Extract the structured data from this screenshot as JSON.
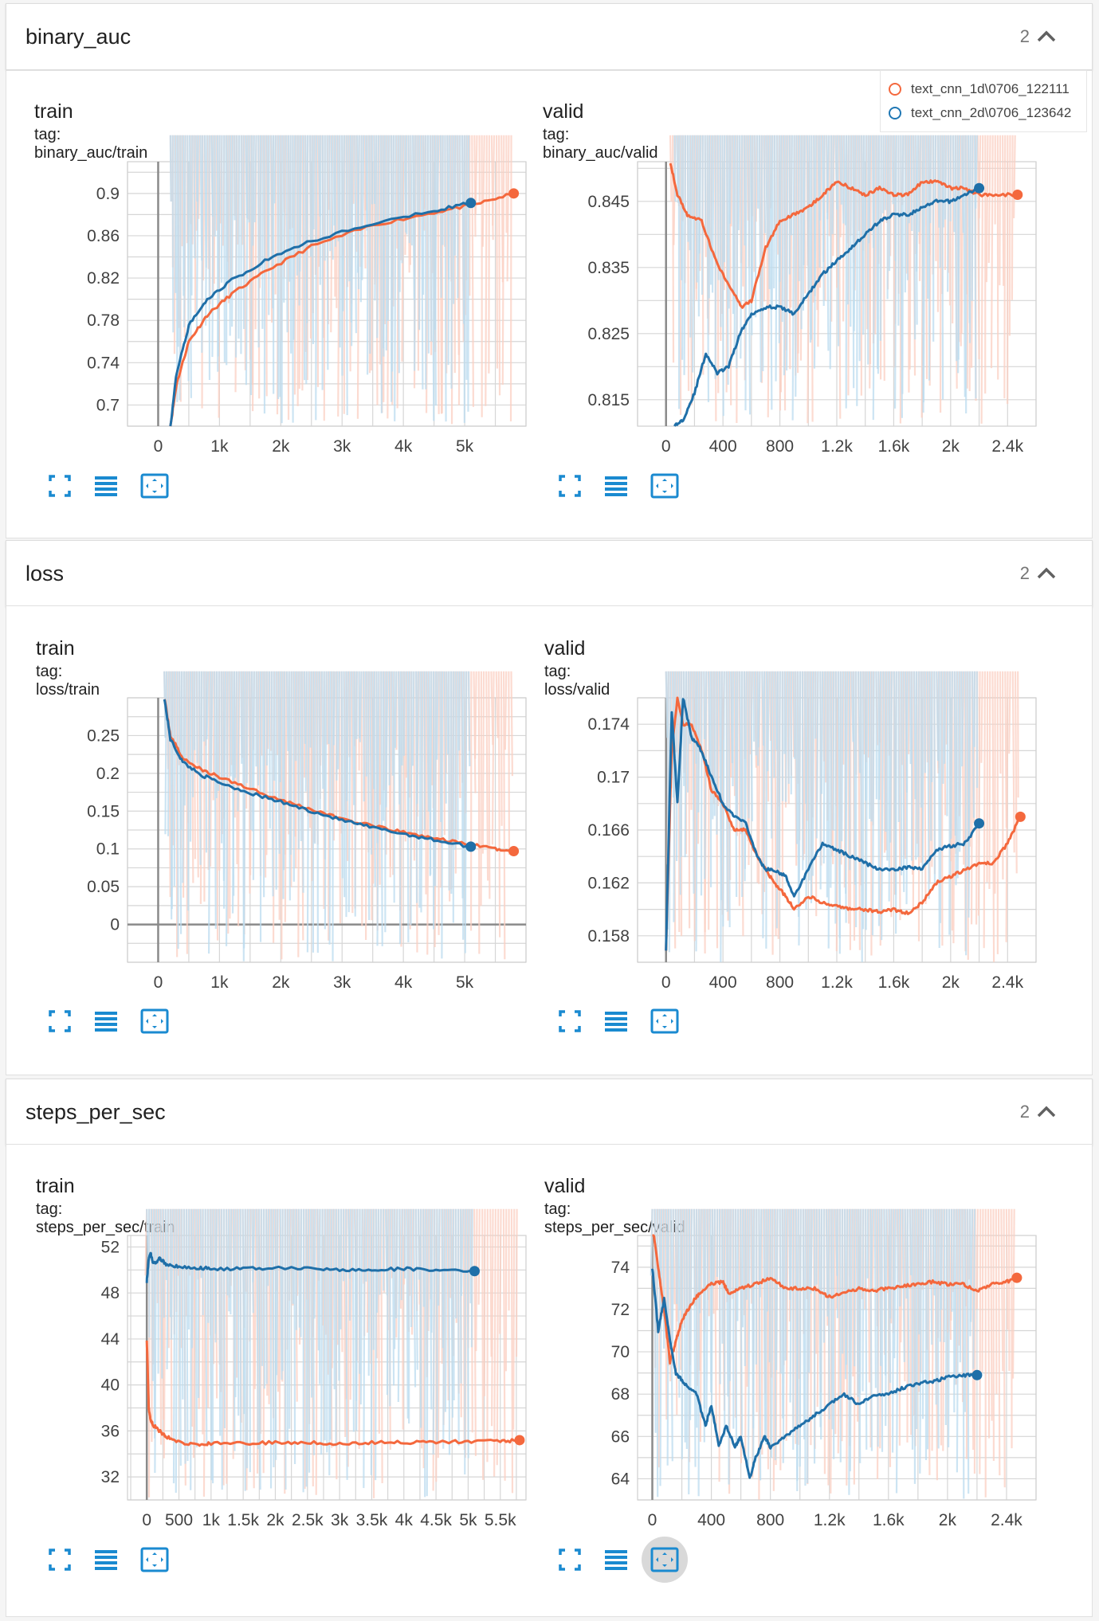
{
  "legend": [
    {
      "name": "text_cnn_1d\\0706_122111",
      "color": "#f4683d"
    },
    {
      "name": "text_cnn_2d\\0706_123642",
      "color": "#1f77b4"
    }
  ],
  "colors": {
    "orange": "#f4683d",
    "blue": "#1f6fa8",
    "orange_light": "#fbd0c2",
    "blue_light": "#bcdcef"
  },
  "sections": [
    {
      "title": "binary_auc",
      "count": "2",
      "cards": [
        {
          "title": "train",
          "tag": "tag: binary_auc/train"
        },
        {
          "title": "valid",
          "tag": "tag: binary_auc/valid"
        }
      ]
    },
    {
      "title": "loss",
      "count": "2",
      "cards": [
        {
          "title": "train",
          "tag": "tag: loss/train"
        },
        {
          "title": "valid",
          "tag": "tag: loss/valid"
        }
      ]
    },
    {
      "title": "steps_per_sec",
      "count": "2",
      "cards": [
        {
          "title": "train",
          "tag": "tag: steps_per_sec/train"
        },
        {
          "title": "valid",
          "tag": "tag: steps_per_sec/valid"
        }
      ]
    }
  ],
  "chart_data": [
    {
      "type": "line",
      "title": "train",
      "id": "auc_train",
      "xlim": [
        -500,
        6000
      ],
      "ylim": [
        0.68,
        0.93
      ],
      "x_ticks": [
        0,
        1000,
        2000,
        3000,
        4000,
        5000
      ],
      "x_tick_labels": [
        "0",
        "1k",
        "2k",
        "3k",
        "4k",
        "5k"
      ],
      "y_ticks": [
        0.7,
        0.74,
        0.78,
        0.82,
        0.86,
        0.9
      ],
      "y_tick_labels": [
        "0.7",
        "0.74",
        "0.78",
        "0.82",
        "0.86",
        "0.9"
      ],
      "series": [
        {
          "name": "text_cnn_1d\\0706_122111",
          "color": "orange",
          "x": [
            200,
            300,
            500,
            800,
            1200,
            1800,
            2500,
            3500,
            4500,
            5200,
            5800
          ],
          "y": [
            0.68,
            0.72,
            0.76,
            0.785,
            0.805,
            0.828,
            0.85,
            0.87,
            0.882,
            0.89,
            0.9
          ]
        },
        {
          "name": "text_cnn_2d\\0706_123642",
          "color": "blue",
          "x": [
            200,
            300,
            500,
            800,
            1200,
            1800,
            2500,
            3500,
            4500,
            5100
          ],
          "y": [
            0.68,
            0.73,
            0.775,
            0.8,
            0.818,
            0.838,
            0.855,
            0.872,
            0.884,
            0.891
          ]
        }
      ]
    },
    {
      "type": "line",
      "title": "valid",
      "id": "auc_valid",
      "xlim": [
        -200,
        2600
      ],
      "ylim": [
        0.811,
        0.851
      ],
      "x_ticks": [
        0,
        400,
        800,
        1200,
        1600,
        2000,
        2400
      ],
      "x_tick_labels": [
        "0",
        "400",
        "800",
        "1.2k",
        "1.6k",
        "2k",
        "2.4k"
      ],
      "y_ticks": [
        0.815,
        0.825,
        0.835,
        0.845
      ],
      "y_tick_labels": [
        "0.815",
        "0.825",
        "0.835",
        "0.845"
      ],
      "series": [
        {
          "name": "text_cnn_1d\\0706_122111",
          "color": "orange",
          "x": [
            30,
            80,
            150,
            250,
            350,
            450,
            530,
            600,
            700,
            800,
            900,
            1000,
            1100,
            1200,
            1300,
            1400,
            1500,
            1600,
            1700,
            1800,
            1900,
            2000,
            2100,
            2200,
            2300,
            2470
          ],
          "y": [
            0.851,
            0.846,
            0.843,
            0.842,
            0.836,
            0.832,
            0.829,
            0.83,
            0.838,
            0.842,
            0.843,
            0.844,
            0.846,
            0.848,
            0.847,
            0.846,
            0.847,
            0.846,
            0.846,
            0.848,
            0.848,
            0.847,
            0.847,
            0.846,
            0.846,
            0.846
          ]
        },
        {
          "name": "text_cnn_2d\\0706_123642",
          "color": "blue",
          "x": [
            60,
            120,
            200,
            280,
            360,
            440,
            520,
            600,
            700,
            800,
            900,
            1000,
            1100,
            1200,
            1300,
            1400,
            1500,
            1600,
            1700,
            1800,
            1900,
            2000,
            2100,
            2200
          ],
          "y": [
            0.811,
            0.812,
            0.816,
            0.822,
            0.819,
            0.82,
            0.825,
            0.828,
            0.829,
            0.829,
            0.828,
            0.831,
            0.834,
            0.836,
            0.838,
            0.84,
            0.842,
            0.843,
            0.843,
            0.844,
            0.845,
            0.845,
            0.846,
            0.847
          ]
        }
      ]
    },
    {
      "type": "line",
      "title": "train",
      "id": "loss_train",
      "xlim": [
        -500,
        6000
      ],
      "ylim": [
        -0.05,
        0.3
      ],
      "x_ticks": [
        0,
        1000,
        2000,
        3000,
        4000,
        5000
      ],
      "x_tick_labels": [
        "0",
        "1k",
        "2k",
        "3k",
        "4k",
        "5k"
      ],
      "y_ticks": [
        0,
        0.05,
        0.1,
        0.15,
        0.2,
        0.25
      ],
      "y_tick_labels": [
        "0",
        "0.05",
        "0.1",
        "0.15",
        "0.2",
        "0.25"
      ],
      "series": [
        {
          "name": "text_cnn_1d\\0706_122111",
          "color": "orange",
          "x": [
            100,
            200,
            400,
            700,
            1000,
            1500,
            2000,
            2500,
            3000,
            3500,
            4000,
            4500,
            5000,
            5500,
            5800
          ],
          "y": [
            0.3,
            0.25,
            0.22,
            0.205,
            0.195,
            0.18,
            0.165,
            0.152,
            0.14,
            0.13,
            0.122,
            0.114,
            0.107,
            0.1,
            0.097
          ]
        },
        {
          "name": "text_cnn_2d\\0706_123642",
          "color": "blue",
          "x": [
            100,
            200,
            400,
            700,
            1000,
            1500,
            2000,
            2500,
            3000,
            3500,
            4000,
            4500,
            5100
          ],
          "y": [
            0.3,
            0.245,
            0.215,
            0.198,
            0.188,
            0.174,
            0.162,
            0.15,
            0.138,
            0.128,
            0.12,
            0.112,
            0.103
          ]
        }
      ]
    },
    {
      "type": "line",
      "title": "valid",
      "id": "loss_valid",
      "xlim": [
        -200,
        2600
      ],
      "ylim": [
        0.156,
        0.176
      ],
      "x_ticks": [
        0,
        400,
        800,
        1200,
        1600,
        2000,
        2400
      ],
      "x_tick_labels": [
        "0",
        "400",
        "800",
        "1.2k",
        "1.6k",
        "2k",
        "2.4k"
      ],
      "y_ticks": [
        0.158,
        0.162,
        0.166,
        0.17,
        0.174
      ],
      "y_tick_labels": [
        "0.158",
        "0.162",
        "0.166",
        "0.17",
        "0.174"
      ],
      "series": [
        {
          "name": "text_cnn_1d\\0706_122111",
          "color": "orange",
          "x": [
            0,
            40,
            80,
            120,
            180,
            250,
            320,
            400,
            480,
            560,
            640,
            700,
            760,
            840,
            900,
            1000,
            1100,
            1200,
            1300,
            1400,
            1500,
            1600,
            1700,
            1800,
            1900,
            2000,
            2100,
            2200,
            2300,
            2400,
            2490
          ],
          "y": [
            0.157,
            0.172,
            0.176,
            0.174,
            0.174,
            0.172,
            0.169,
            0.168,
            0.166,
            0.166,
            0.164,
            0.163,
            0.162,
            0.161,
            0.16,
            0.161,
            0.1605,
            0.1603,
            0.16,
            0.16,
            0.1598,
            0.16,
            0.1597,
            0.1605,
            0.162,
            0.1625,
            0.163,
            0.1635,
            0.1635,
            0.165,
            0.167
          ]
        },
        {
          "name": "text_cnn_2d\\0706_123642",
          "color": "blue",
          "x": [
            0,
            40,
            80,
            120,
            180,
            250,
            320,
            400,
            480,
            560,
            640,
            700,
            760,
            840,
            900,
            1000,
            1100,
            1200,
            1300,
            1400,
            1500,
            1600,
            1700,
            1800,
            1900,
            2000,
            2100,
            2200
          ],
          "y": [
            0.157,
            0.175,
            0.168,
            0.176,
            0.173,
            0.172,
            0.17,
            0.168,
            0.167,
            0.1665,
            0.164,
            0.163,
            0.163,
            0.1625,
            0.161,
            0.163,
            0.165,
            0.1645,
            0.164,
            0.1635,
            0.163,
            0.163,
            0.1632,
            0.163,
            0.1645,
            0.1648,
            0.165,
            0.1665
          ]
        }
      ]
    },
    {
      "type": "line",
      "title": "train",
      "id": "sps_train",
      "xlim": [
        -300,
        5900
      ],
      "ylim": [
        30,
        53
      ],
      "x_ticks": [
        0,
        500,
        1000,
        1500,
        2000,
        2500,
        3000,
        3500,
        4000,
        4500,
        5000,
        5500
      ],
      "x_tick_labels": [
        "0",
        "500",
        "1k",
        "1.5k",
        "2k",
        "2.5k",
        "3k",
        "3.5k",
        "4k",
        "4.5k",
        "5k",
        "5.5k"
      ],
      "y_ticks": [
        32,
        36,
        40,
        44,
        48,
        52
      ],
      "y_tick_labels": [
        "32",
        "36",
        "40",
        "44",
        "48",
        "52"
      ],
      "series": [
        {
          "name": "text_cnn_1d\\0706_122111",
          "color": "orange",
          "x": [
            0,
            30,
            60,
            100,
            200,
            300,
            500,
            800,
            1000,
            1500,
            2000,
            2500,
            3000,
            3500,
            4000,
            4500,
            5000,
            5500,
            5800
          ],
          "y": [
            44,
            38,
            37,
            36.5,
            36,
            35.5,
            35,
            34.8,
            34.9,
            34.9,
            35,
            35,
            34.9,
            35,
            35,
            35,
            35.1,
            35.1,
            35.2
          ]
        },
        {
          "name": "text_cnn_2d\\0706_123642",
          "color": "blue",
          "x": [
            0,
            30,
            60,
            100,
            200,
            300,
            500,
            800,
            1000,
            1500,
            2000,
            2500,
            3000,
            3500,
            4000,
            4500,
            5100
          ],
          "y": [
            49,
            51,
            51.5,
            50.5,
            51,
            50.5,
            50.3,
            50.2,
            50.1,
            50.1,
            50.2,
            50.1,
            50,
            50,
            50.1,
            50,
            49.9
          ]
        }
      ]
    },
    {
      "type": "line",
      "title": "valid",
      "id": "sps_valid",
      "xlim": [
        -100,
        2600
      ],
      "ylim": [
        63,
        75.5
      ],
      "x_ticks": [
        0,
        400,
        800,
        1200,
        1600,
        2000,
        2400
      ],
      "x_tick_labels": [
        "0",
        "400",
        "800",
        "1.2k",
        "1.6k",
        "2k",
        "2.4k"
      ],
      "y_ticks": [
        64,
        66,
        68,
        70,
        72,
        74
      ],
      "y_tick_labels": [
        "64",
        "66",
        "68",
        "70",
        "72",
        "74"
      ],
      "series": [
        {
          "name": "text_cnn_1d\\0706_122111",
          "color": "orange",
          "x": [
            0,
            40,
            80,
            120,
            160,
            200,
            260,
            320,
            400,
            480,
            520,
            600,
            700,
            800,
            900,
            1000,
            1100,
            1200,
            1300,
            1400,
            1500,
            1600,
            1700,
            1800,
            1900,
            2000,
            2100,
            2200,
            2300,
            2400,
            2470
          ],
          "y": [
            76,
            74,
            72,
            69.5,
            70.5,
            71.5,
            72.2,
            72.8,
            73.2,
            73.3,
            72.7,
            73,
            73.2,
            73.5,
            73,
            73,
            73,
            72.6,
            72.8,
            73,
            72.9,
            73,
            73.1,
            73.2,
            73.3,
            73.2,
            73.2,
            72.9,
            73.2,
            73.3,
            73.5
          ]
        },
        {
          "name": "text_cnn_2d\\0706_123642",
          "color": "blue",
          "x": [
            0,
            40,
            80,
            120,
            160,
            220,
            300,
            360,
            400,
            450,
            500,
            560,
            600,
            660,
            700,
            760,
            800,
            900,
            1000,
            1100,
            1200,
            1300,
            1400,
            1500,
            1600,
            1700,
            1800,
            1900,
            2000,
            2100,
            2200
          ],
          "y": [
            74,
            71,
            72.5,
            70.5,
            69,
            68.5,
            68,
            66.5,
            67.5,
            65.5,
            66.5,
            65.5,
            66,
            64,
            65,
            66,
            65.5,
            66,
            66.5,
            67,
            67.5,
            68,
            67.5,
            68,
            68,
            68.3,
            68.5,
            68.6,
            68.8,
            68.9,
            68.9
          ]
        }
      ]
    }
  ]
}
